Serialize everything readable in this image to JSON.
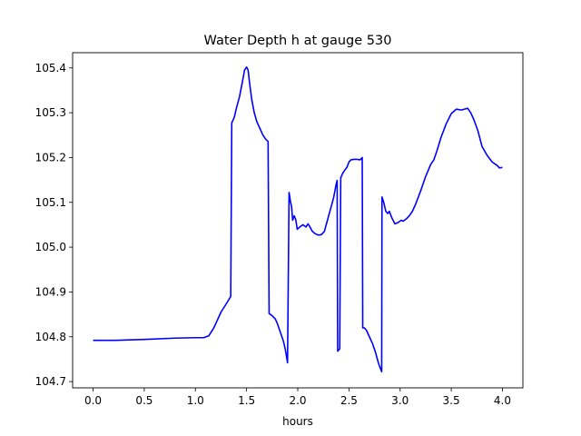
{
  "chart_data": {
    "type": "line",
    "title": "Water Depth h at gauge 530",
    "xlabel": "hours",
    "ylabel": "",
    "xlim": [
      -0.2,
      4.2
    ],
    "ylim": [
      104.686,
      105.434
    ],
    "x_ticks": [
      0.0,
      0.5,
      1.0,
      1.5,
      2.0,
      2.5,
      3.0,
      3.5,
      4.0
    ],
    "x_tick_labels": [
      "0.0",
      "0.5",
      "1.0",
      "1.5",
      "2.0",
      "2.5",
      "3.0",
      "3.5",
      "4.0"
    ],
    "y_ticks": [
      104.7,
      104.8,
      104.9,
      105.0,
      105.1,
      105.2,
      105.3,
      105.4
    ],
    "y_tick_labels": [
      "104.7",
      "104.8",
      "104.9",
      "105.0",
      "105.1",
      "105.2",
      "105.3",
      "105.4"
    ],
    "grid": false,
    "series": [
      {
        "color": "#0000ff",
        "points": [
          [
            0.0,
            104.792
          ],
          [
            0.2,
            104.792
          ],
          [
            0.5,
            104.794
          ],
          [
            0.8,
            104.797
          ],
          [
            1.0,
            104.798
          ],
          [
            1.08,
            104.798
          ],
          [
            1.13,
            104.802
          ],
          [
            1.18,
            104.82
          ],
          [
            1.25,
            104.855
          ],
          [
            1.3,
            104.873
          ],
          [
            1.345,
            104.89
          ],
          [
            1.355,
            105.277
          ],
          [
            1.38,
            105.29
          ],
          [
            1.4,
            105.31
          ],
          [
            1.43,
            105.335
          ],
          [
            1.46,
            105.37
          ],
          [
            1.48,
            105.395
          ],
          [
            1.5,
            105.402
          ],
          [
            1.515,
            105.395
          ],
          [
            1.53,
            105.365
          ],
          [
            1.55,
            105.33
          ],
          [
            1.575,
            105.3
          ],
          [
            1.6,
            105.28
          ],
          [
            1.63,
            105.265
          ],
          [
            1.66,
            105.25
          ],
          [
            1.69,
            105.24
          ],
          [
            1.71,
            105.236
          ],
          [
            1.72,
            104.852
          ],
          [
            1.75,
            104.847
          ],
          [
            1.78,
            104.84
          ],
          [
            1.8,
            104.83
          ],
          [
            1.83,
            104.81
          ],
          [
            1.86,
            104.79
          ],
          [
            1.88,
            104.77
          ],
          [
            1.9,
            104.742
          ],
          [
            1.915,
            105.122
          ],
          [
            1.93,
            105.1
          ],
          [
            1.94,
            105.09
          ],
          [
            1.95,
            105.06
          ],
          [
            1.965,
            105.07
          ],
          [
            1.98,
            105.062
          ],
          [
            1.995,
            105.04
          ],
          [
            2.02,
            105.045
          ],
          [
            2.05,
            105.05
          ],
          [
            2.08,
            105.045
          ],
          [
            2.1,
            105.052
          ],
          [
            2.12,
            105.045
          ],
          [
            2.14,
            105.036
          ],
          [
            2.17,
            105.03
          ],
          [
            2.2,
            105.027
          ],
          [
            2.23,
            105.028
          ],
          [
            2.26,
            105.035
          ],
          [
            2.29,
            105.06
          ],
          [
            2.32,
            105.085
          ],
          [
            2.35,
            105.11
          ],
          [
            2.375,
            105.14
          ],
          [
            2.385,
            105.149
          ],
          [
            2.39,
            104.768
          ],
          [
            2.41,
            104.773
          ],
          [
            2.42,
            105.155
          ],
          [
            2.44,
            105.165
          ],
          [
            2.46,
            105.172
          ],
          [
            2.48,
            105.178
          ],
          [
            2.5,
            105.19
          ],
          [
            2.52,
            105.195
          ],
          [
            2.55,
            105.196
          ],
          [
            2.58,
            105.196
          ],
          [
            2.61,
            105.195
          ],
          [
            2.63,
            105.2
          ],
          [
            2.635,
            104.82
          ],
          [
            2.65,
            104.82
          ],
          [
            2.67,
            104.815
          ],
          [
            2.7,
            104.8
          ],
          [
            2.73,
            104.785
          ],
          [
            2.76,
            104.765
          ],
          [
            2.79,
            104.74
          ],
          [
            2.82,
            104.722
          ],
          [
            2.823,
            105.112
          ],
          [
            2.84,
            105.1
          ],
          [
            2.86,
            105.08
          ],
          [
            2.88,
            105.075
          ],
          [
            2.895,
            105.08
          ],
          [
            2.92,
            105.065
          ],
          [
            2.95,
            105.052
          ],
          [
            2.98,
            105.055
          ],
          [
            3.01,
            105.06
          ],
          [
            3.03,
            105.058
          ],
          [
            3.06,
            105.063
          ],
          [
            3.09,
            105.07
          ],
          [
            3.12,
            105.08
          ],
          [
            3.15,
            105.095
          ],
          [
            3.2,
            105.125
          ],
          [
            3.25,
            105.158
          ],
          [
            3.3,
            105.185
          ],
          [
            3.33,
            105.195
          ],
          [
            3.36,
            105.215
          ],
          [
            3.4,
            105.245
          ],
          [
            3.45,
            105.275
          ],
          [
            3.5,
            105.298
          ],
          [
            3.55,
            105.308
          ],
          [
            3.6,
            105.306
          ],
          [
            3.63,
            105.308
          ],
          [
            3.66,
            105.31
          ],
          [
            3.69,
            105.3
          ],
          [
            3.72,
            105.285
          ],
          [
            3.76,
            105.26
          ],
          [
            3.8,
            105.225
          ],
          [
            3.85,
            105.205
          ],
          [
            3.9,
            105.19
          ],
          [
            3.95,
            105.182
          ],
          [
            3.97,
            105.177
          ],
          [
            4.0,
            105.178
          ]
        ]
      }
    ]
  }
}
